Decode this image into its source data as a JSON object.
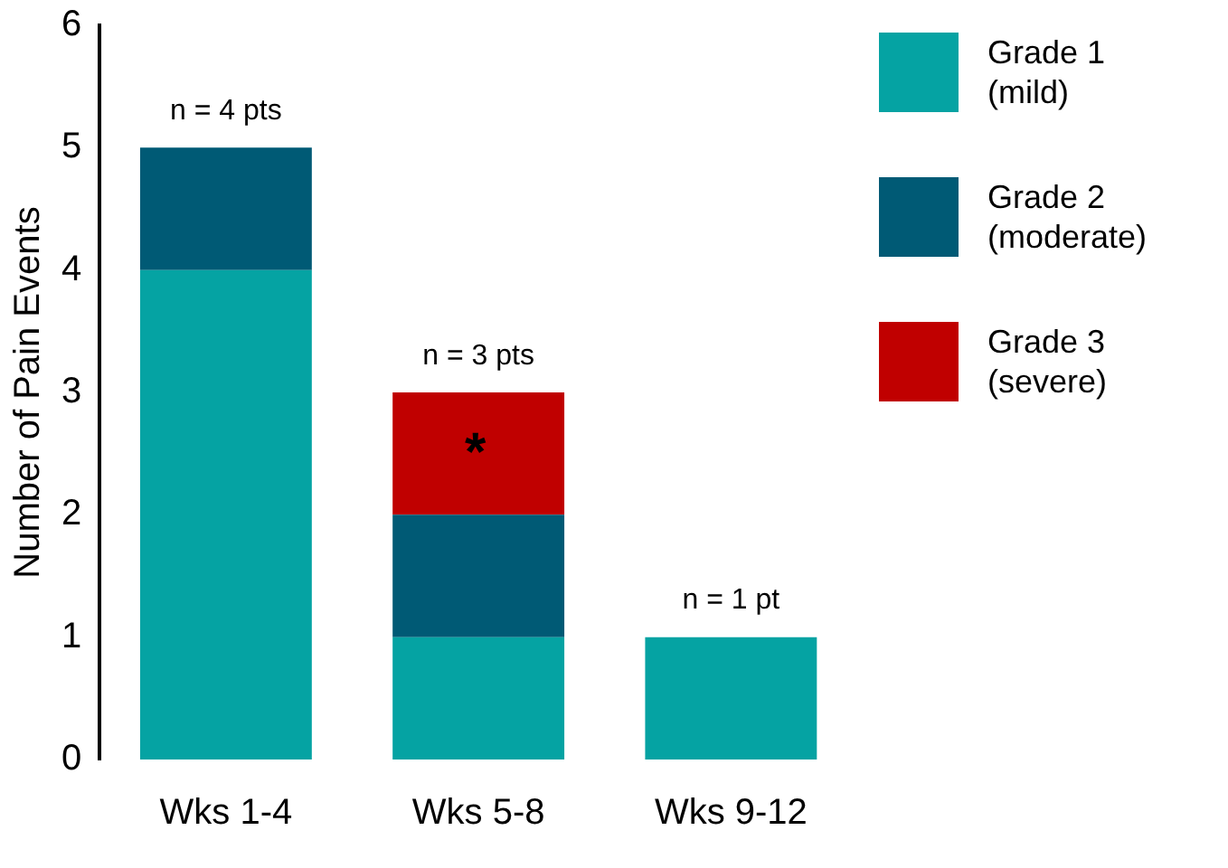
{
  "chart_data": {
    "type": "bar",
    "stacked": true,
    "ylabel": "Number of Pain Events",
    "categories": [
      "Wks 1-4",
      "Wks 5-8",
      "Wks 9-12"
    ],
    "series": [
      {
        "name": "Grade 1 (mild)",
        "color": "#05a3a3",
        "values": [
          4,
          1,
          1
        ]
      },
      {
        "name": "Grade 2 (moderate)",
        "color": "#005a75",
        "values": [
          1,
          1,
          0
        ]
      },
      {
        "name": "Grade 3 (severe)",
        "color": "#c00000",
        "values": [
          0,
          1,
          0
        ]
      }
    ],
    "ylim": [
      0,
      6
    ],
    "yticks": [
      0,
      1,
      2,
      3,
      4,
      5,
      6
    ],
    "grid": false,
    "legend": "top right",
    "annotations": [
      {
        "text": "n = 4 pts",
        "x": "Wks 1-4",
        "y": 5
      },
      {
        "text": "n = 3 pts",
        "x": "Wks 5-8",
        "y": 3
      },
      {
        "text": "n = 1 pt",
        "x": "Wks 9-12",
        "y": 1
      },
      "*"
    ]
  }
}
